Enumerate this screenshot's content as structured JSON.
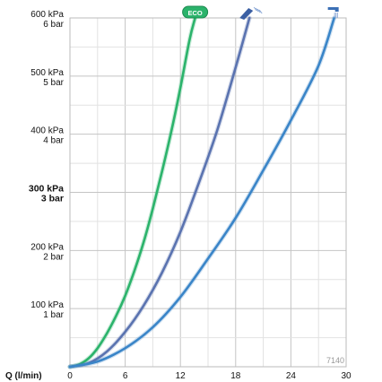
{
  "chart_data": {
    "type": "line",
    "xlabel": "Q (l/min)",
    "x_ticks": [
      "0",
      "6",
      "12",
      "18",
      "24",
      "30"
    ],
    "xlim": [
      0,
      30
    ],
    "ylim": [
      0,
      600
    ],
    "y_ticks": [
      {
        "value": 100,
        "kpa": "100 kPa",
        "bar": "1 bar",
        "bold": false
      },
      {
        "value": 200,
        "kpa": "200 kPa",
        "bar": "2 bar",
        "bold": false
      },
      {
        "value": 300,
        "kpa": "300 kPa",
        "bar": "3 bar",
        "bold": true
      },
      {
        "value": 400,
        "kpa": "400 kPa",
        "bar": "4 bar",
        "bold": false
      },
      {
        "value": 500,
        "kpa": "500 kPa",
        "bar": "5 bar",
        "bold": false
      },
      {
        "value": 600,
        "kpa": "600 kPa",
        "bar": "6 bar",
        "bold": false
      }
    ],
    "grid": true,
    "annotation": "7140",
    "series": [
      {
        "marker": "eco-badge",
        "marker_text": "ECO",
        "color": "#2bb36b",
        "points": [
          [
            0,
            0
          ],
          [
            1,
            4
          ],
          [
            2,
            14
          ],
          [
            3,
            32
          ],
          [
            4,
            57
          ],
          [
            5,
            87
          ],
          [
            6,
            122
          ],
          [
            7,
            165
          ],
          [
            8,
            214
          ],
          [
            9,
            272
          ],
          [
            10,
            336
          ],
          [
            11,
            404
          ],
          [
            12,
            480
          ],
          [
            13,
            563
          ],
          [
            13.6,
            600
          ]
        ]
      },
      {
        "marker": "handshower-icon",
        "color": "#5a73b0",
        "points": [
          [
            0,
            0
          ],
          [
            2,
            6
          ],
          [
            4,
            26
          ],
          [
            6,
            60
          ],
          [
            8,
            105
          ],
          [
            10,
            162
          ],
          [
            12,
            232
          ],
          [
            14,
            316
          ],
          [
            16,
            407
          ],
          [
            18,
            515
          ],
          [
            19.5,
            600
          ]
        ]
      },
      {
        "marker": "overhead-shower-icon",
        "color": "#3a85c8",
        "points": [
          [
            0,
            0
          ],
          [
            3,
            9
          ],
          [
            6,
            32
          ],
          [
            9,
            68
          ],
          [
            12,
            120
          ],
          [
            15,
            186
          ],
          [
            18,
            256
          ],
          [
            21,
            338
          ],
          [
            24,
            424
          ],
          [
            27,
            518
          ],
          [
            28.7,
            600
          ]
        ]
      }
    ]
  }
}
